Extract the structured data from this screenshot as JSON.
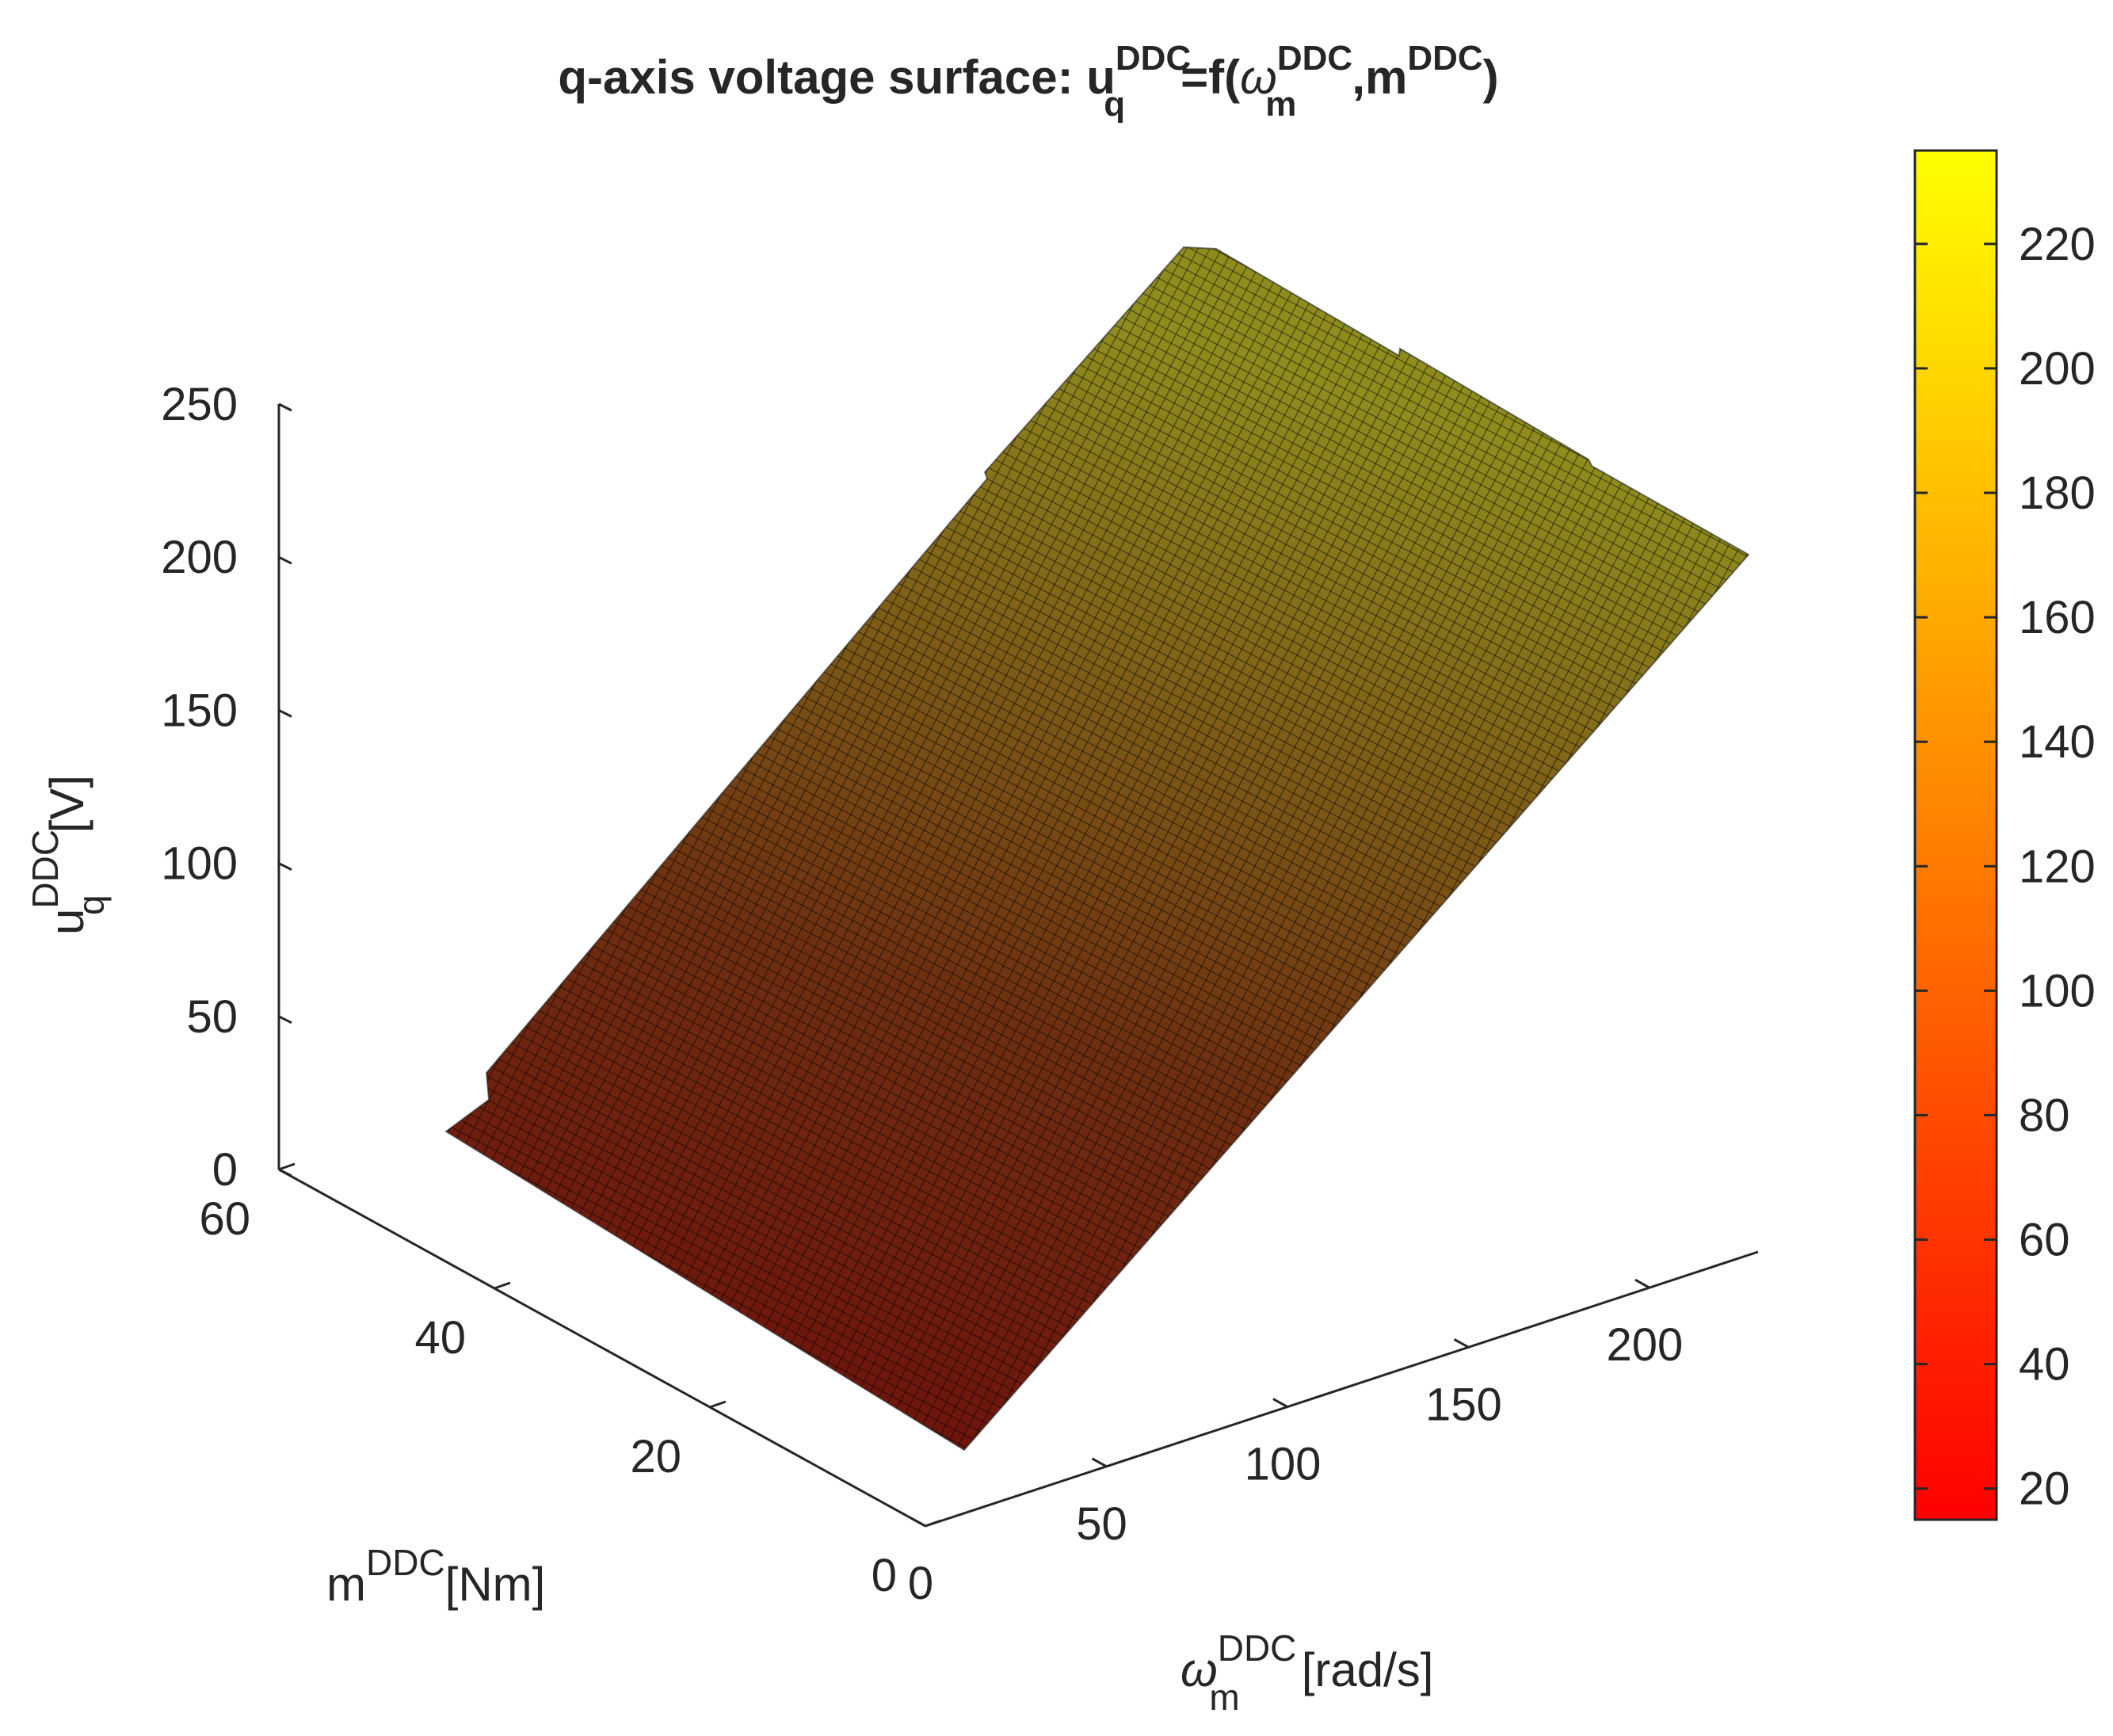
{
  "chart_data": {
    "type": "surface3d",
    "title": {
      "prefix": "q-axis voltage surface: u",
      "sub_q": "q",
      "sup_ddc_1": "DDC",
      "eq": "=f(",
      "omega": "ω",
      "sub_m": "m",
      "sup_ddc_2": "DDC",
      "comma_m": ",m",
      "sup_ddc_3": "DDC",
      "close": ")"
    },
    "zlabel": {
      "base": "u",
      "sub": "q",
      "sup": "DDC",
      "unit": "[V]"
    },
    "ylabel": {
      "base": "m",
      "sup": "DDC",
      "unit": "[Nm]"
    },
    "xlabel": {
      "base": "ω",
      "sub": "m",
      "sup": "DDC",
      "unit": "[rad/s]"
    },
    "x_range": [
      0,
      230
    ],
    "y_range": [
      0,
      60
    ],
    "z_range": [
      0,
      250
    ],
    "x_ticks": [
      "0",
      "50",
      "100",
      "150",
      "200"
    ],
    "x_tick_values": [
      0,
      50,
      100,
      150,
      200
    ],
    "y_ticks": [
      "0",
      "20",
      "40",
      "60"
    ],
    "y_tick_values": [
      0,
      20,
      40,
      60
    ],
    "z_ticks": [
      "0",
      "50",
      "100",
      "150",
      "200",
      "250"
    ],
    "z_tick_values": [
      0,
      50,
      100,
      150,
      200,
      250
    ],
    "colorbar": {
      "range": [
        15,
        235
      ],
      "ticks": [
        "20",
        "40",
        "60",
        "80",
        "100",
        "120",
        "140",
        "160",
        "180",
        "200",
        "220"
      ],
      "tick_values": [
        20,
        40,
        60,
        80,
        100,
        120,
        140,
        160,
        180,
        200,
        220
      ],
      "colormap": "autumn",
      "colors": [
        "#ff0000",
        "#ff8000",
        "#ffff00"
      ]
    },
    "surface": {
      "description_free": true,
      "shading_color_low": "#7a0a0a",
      "shading_color_high": "#9c9a20",
      "u_min": 15,
      "u_max": 235
    }
  }
}
